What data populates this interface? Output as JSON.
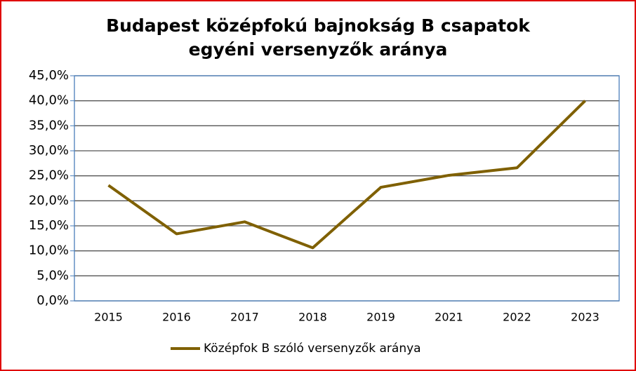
{
  "chart_data": {
    "type": "line",
    "title": [
      "Budapest középfokú bajnokság B csapatok",
      "egyéni versenyzők aránya"
    ],
    "categories": [
      "2015",
      "2016",
      "2017",
      "2018",
      "2019",
      "2021",
      "2022",
      "2023"
    ],
    "series": [
      {
        "name": "Középfok B szóló versenyzők aránya",
        "color": "#7f6000",
        "values": [
          23.1,
          13.4,
          15.8,
          10.6,
          22.7,
          25.1,
          26.6,
          40.0
        ]
      }
    ],
    "ylim": [
      0,
      45
    ],
    "yticks": [
      {
        "value": 0,
        "label": "0,0%"
      },
      {
        "value": 5,
        "label": "5,0%"
      },
      {
        "value": 10,
        "label": "10,0%"
      },
      {
        "value": 15,
        "label": "15,0%"
      },
      {
        "value": 20,
        "label": "20,0%"
      },
      {
        "value": 25,
        "label": "25,0%"
      },
      {
        "value": 30,
        "label": "30,0%"
      },
      {
        "value": 35,
        "label": "35,0%"
      },
      {
        "value": 40,
        "label": "40,0%"
      },
      {
        "value": 45,
        "label": "45,0%"
      }
    ],
    "grid": true,
    "legend": "bottom"
  }
}
